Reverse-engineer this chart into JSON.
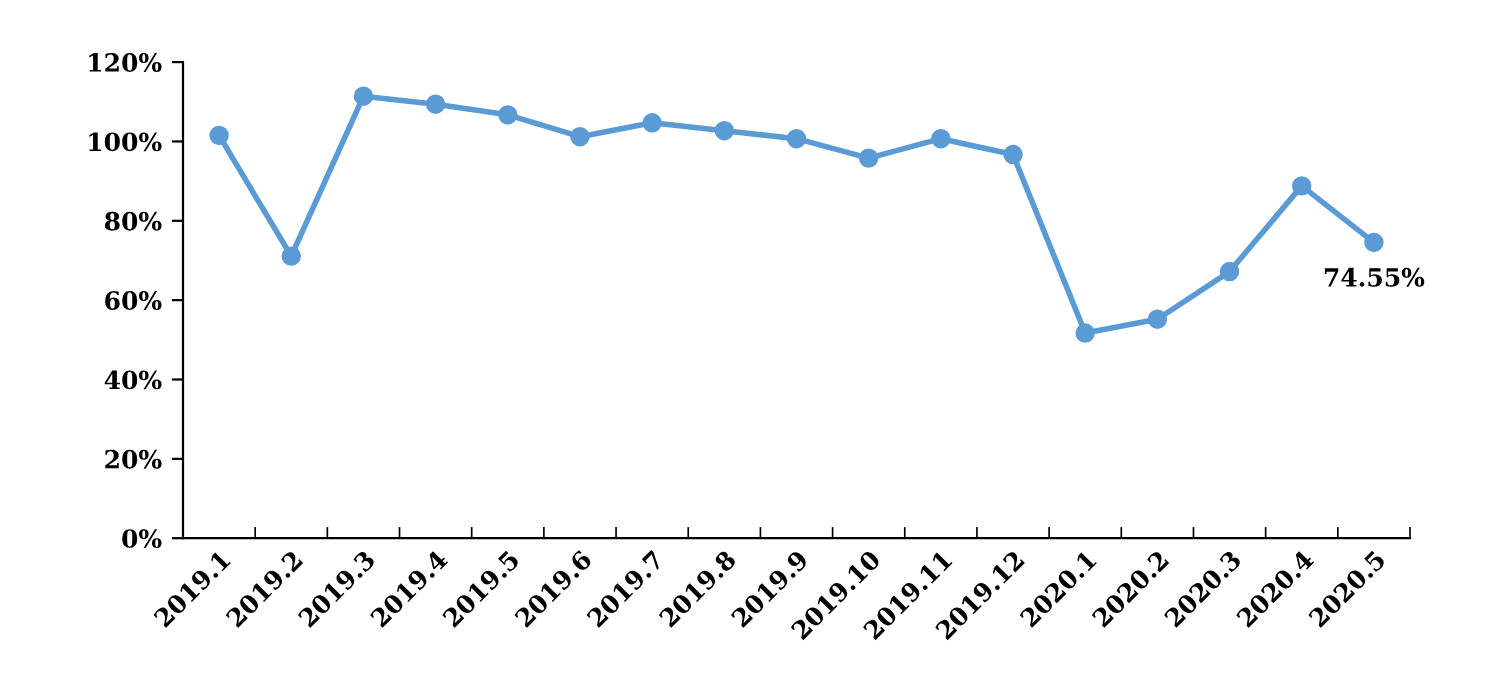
{
  "chart_data": {
    "type": "line",
    "categories": [
      "2019.1",
      "2019.2",
      "2019.3",
      "2019.4",
      "2019.5",
      "2019.6",
      "2019.7",
      "2019.8",
      "2019.9",
      "2019.10",
      "2019.11",
      "2019.12",
      "2020.1",
      "2020.2",
      "2020.3",
      "2020.4",
      "2020.5"
    ],
    "series": [
      {
        "color": "#5b9bd5",
        "values": [
          101.5,
          71.1,
          111.4,
          109.4,
          106.7,
          101.2,
          104.7,
          102.7,
          100.7,
          95.8,
          100.7,
          96.7,
          51.7,
          55.2,
          67.2,
          88.8,
          74.55
        ],
        "value_labels": [
          null,
          null,
          null,
          null,
          null,
          null,
          null,
          null,
          null,
          null,
          null,
          null,
          null,
          null,
          null,
          null,
          "74.55%"
        ]
      }
    ],
    "ylim": [
      0,
      120
    ],
    "yticks": [
      {
        "value": 0,
        "label": "0%"
      },
      {
        "value": 20,
        "label": "20%"
      },
      {
        "value": 40,
        "label": "40%"
      },
      {
        "value": 60,
        "label": "60%"
      },
      {
        "value": 80,
        "label": "80%"
      },
      {
        "value": 100,
        "label": "100%"
      },
      {
        "value": 120,
        "label": "120%"
      }
    ],
    "marker": "circle",
    "line_style": "solid"
  }
}
